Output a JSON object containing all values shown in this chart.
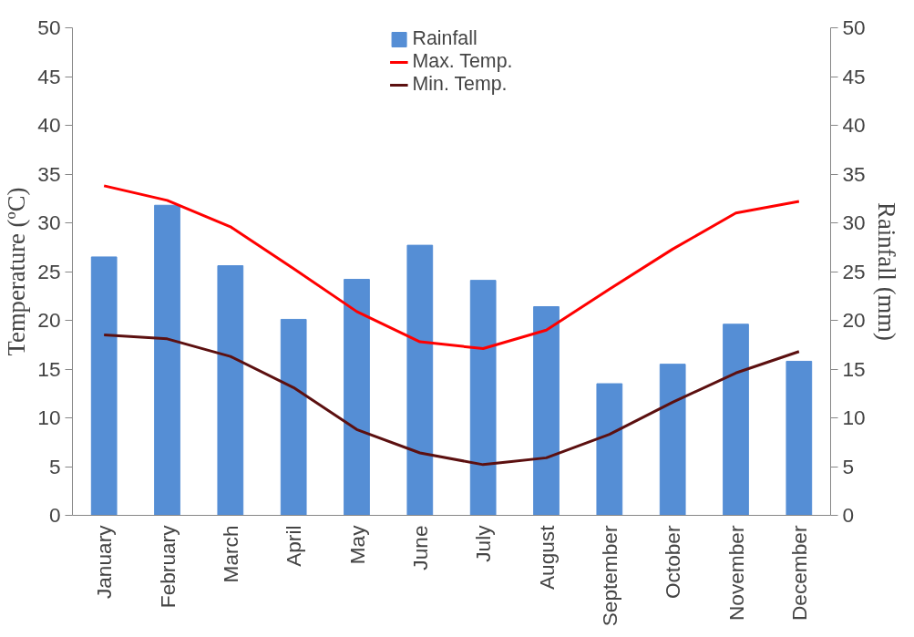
{
  "chart_data": {
    "type": "bar",
    "categories": [
      "January",
      "February",
      "March",
      "April",
      "May",
      "June",
      "July",
      "August",
      "September",
      "October",
      "November",
      "December"
    ],
    "ylabel": "Temperature (ºC)",
    "y2label": "Rainfall (mm)",
    "ylim": [
      0,
      50
    ],
    "yticks": [
      0,
      5,
      10,
      15,
      20,
      25,
      30,
      35,
      40,
      45,
      50
    ],
    "y2lim": [
      0,
      50
    ],
    "y2ticks": [
      0,
      5,
      10,
      15,
      20,
      25,
      30,
      35,
      40,
      45,
      50
    ],
    "grid": false,
    "legend": "top",
    "series": [
      {
        "name": "Rainfall",
        "axis": "y2",
        "color": "#558ed5",
        "values": [
          26.5,
          31.8,
          25.6,
          20.1,
          24.2,
          27.7,
          24.1,
          21.4,
          13.5,
          15.5,
          19.6,
          15.8
        ]
      },
      {
        "name": "Max. Temp.",
        "type": "line",
        "color": "#ff0000",
        "values": [
          33.8,
          32.3,
          29.6,
          25.3,
          20.9,
          17.8,
          17.1,
          19.0,
          23.2,
          27.3,
          31.0,
          32.2
        ]
      },
      {
        "name": "Min. Temp.",
        "type": "line",
        "color": "#5c1010",
        "values": [
          18.5,
          18.1,
          16.3,
          13.1,
          8.8,
          6.4,
          5.2,
          5.9,
          8.3,
          11.6,
          14.6,
          16.8
        ]
      }
    ]
  }
}
